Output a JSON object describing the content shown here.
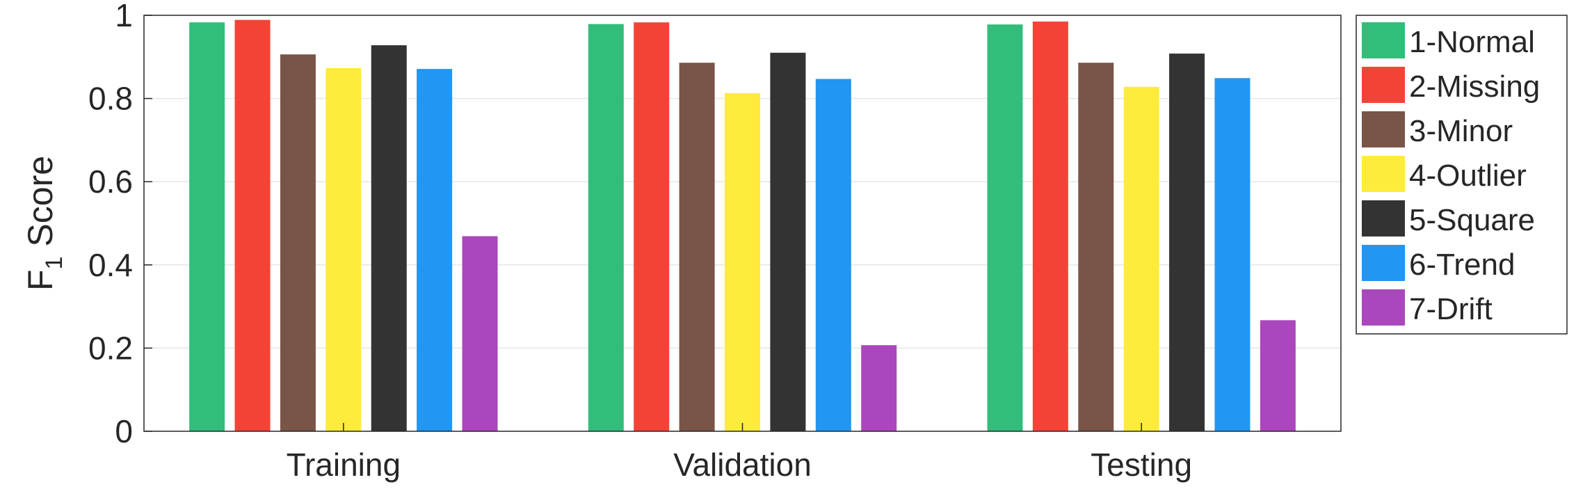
{
  "chart_data": {
    "type": "bar",
    "title": "",
    "xlabel": "",
    "ylabel": "F",
    "ylabel_sub": "1",
    "ylabel_rest": "Score",
    "ylim": [
      0,
      1
    ],
    "yticks": [
      0,
      0.2,
      0.4,
      0.6,
      0.8,
      1
    ],
    "ytick_labels": [
      "0",
      "0.2",
      "0.4",
      "0.6",
      "0.8",
      "1"
    ],
    "grid": true,
    "legend_position": "right",
    "categories": [
      "Training",
      "Validation",
      "Testing"
    ],
    "series": [
      {
        "name": "1-Normal",
        "color": "#33bd7a",
        "values": [
          0.983,
          0.979,
          0.978
        ]
      },
      {
        "name": "2-Missing",
        "color": "#f44336",
        "values": [
          0.989,
          0.983,
          0.985
        ]
      },
      {
        "name": "3-Minor",
        "color": "#795548",
        "values": [
          0.906,
          0.886,
          0.886
        ]
      },
      {
        "name": "4-Outlier",
        "color": "#ffeb3b",
        "values": [
          0.873,
          0.813,
          0.828
        ]
      },
      {
        "name": "5-Square",
        "color": "#333333",
        "values": [
          0.928,
          0.91,
          0.908
        ]
      },
      {
        "name": "6-Trend",
        "color": "#2196f3",
        "values": [
          0.871,
          0.847,
          0.849
        ]
      },
      {
        "name": "7-Drift",
        "color": "#ab47bc",
        "values": [
          0.469,
          0.207,
          0.267
        ]
      }
    ]
  }
}
